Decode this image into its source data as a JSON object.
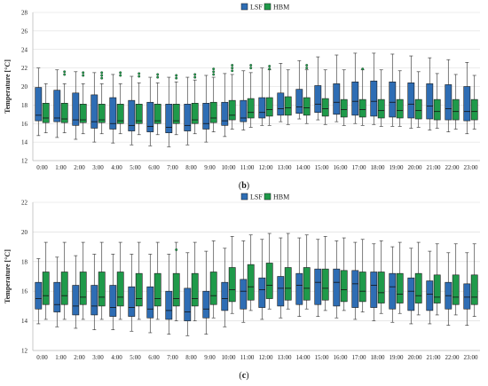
{
  "chart_data": [
    {
      "type": "boxplot",
      "panel": "b",
      "caption_open": "(",
      "caption_letter": "b",
      "caption_close": ")",
      "ylabel": "Temperature [°C]",
      "ylim": [
        12,
        28
      ],
      "yticks": [
        12,
        14,
        16,
        18,
        20,
        22,
        24,
        26,
        28
      ],
      "grid": true,
      "legend_position": "top-right",
      "categories": [
        "0:00",
        "1:00",
        "2:00",
        "3:00",
        "4:00",
        "5:00",
        "6:00",
        "7:00",
        "8:00",
        "9:00",
        "10:00",
        "11:00",
        "12:00",
        "13:00",
        "14:00",
        "15:00",
        "16:00",
        "17:00",
        "18:00",
        "19:00",
        "20:00",
        "21:00",
        "22:00",
        "23:00"
      ],
      "series": [
        {
          "name": "LSF",
          "color": "#2e6db4",
          "boxes": [
            [
              14.7,
              16.3,
              16.9,
              19.9,
              22.0
            ],
            [
              14.5,
              16.2,
              16.6,
              19.6,
              21.8
            ],
            [
              14.3,
              15.8,
              16.4,
              19.3,
              21.6
            ],
            [
              14.0,
              15.5,
              16.2,
              19.1,
              21.5
            ],
            [
              13.9,
              15.4,
              16.0,
              18.8,
              21.3
            ],
            [
              13.7,
              15.2,
              15.8,
              18.5,
              21.1
            ],
            [
              13.6,
              15.1,
              15.7,
              18.3,
              21.0
            ],
            [
              13.5,
              15.0,
              15.6,
              18.1,
              21.0
            ],
            [
              13.7,
              15.2,
              15.8,
              18.1,
              21.0
            ],
            [
              14.0,
              15.4,
              16.0,
              18.2,
              21.2
            ],
            [
              14.6,
              15.8,
              16.3,
              18.3,
              21.4
            ],
            [
              15.3,
              16.2,
              16.6,
              18.5,
              21.7
            ],
            [
              15.8,
              16.6,
              17.2,
              18.8,
              22.0
            ],
            [
              16.2,
              16.9,
              17.6,
              19.3,
              22.5
            ],
            [
              16.5,
              17.1,
              17.8,
              19.7,
              22.8
            ],
            [
              16.4,
              17.2,
              18.1,
              20.1,
              23.2
            ],
            [
              16.2,
              17.0,
              18.3,
              20.3,
              23.4
            ],
            [
              16.0,
              16.9,
              18.4,
              20.5,
              23.6
            ],
            [
              15.9,
              16.8,
              18.4,
              20.6,
              23.6
            ],
            [
              15.7,
              16.7,
              18.3,
              20.5,
              23.5
            ],
            [
              15.5,
              16.6,
              18.1,
              20.4,
              23.3
            ],
            [
              15.3,
              16.5,
              17.9,
              20.3,
              23.1
            ],
            [
              15.1,
              16.4,
              17.6,
              20.2,
              22.9
            ],
            [
              14.9,
              16.3,
              17.3,
              20.0,
              22.6
            ]
          ]
        },
        {
          "name": "HBM",
          "color": "#1f9a4a",
          "boxes": [
            [
              15.0,
              16.1,
              16.6,
              18.2,
              20.3
            ],
            [
              15.0,
              16.1,
              16.5,
              18.2,
              20.3
            ],
            [
              14.9,
              16.1,
              16.4,
              18.1,
              20.3
            ],
            [
              14.9,
              16.1,
              16.4,
              18.1,
              20.3
            ],
            [
              14.9,
              16.0,
              16.3,
              18.1,
              20.3
            ],
            [
              14.8,
              16.0,
              16.3,
              18.1,
              20.4
            ],
            [
              14.8,
              16.0,
              16.3,
              18.1,
              20.4
            ],
            [
              14.8,
              16.0,
              16.3,
              18.1,
              20.5
            ],
            [
              14.9,
              16.0,
              16.4,
              18.2,
              20.7
            ],
            [
              15.1,
              16.1,
              16.6,
              18.3,
              21.0
            ],
            [
              15.4,
              16.4,
              16.9,
              18.5,
              21.3
            ],
            [
              15.6,
              16.6,
              17.2,
              18.7,
              21.5
            ],
            [
              15.8,
              16.8,
              17.5,
              18.8,
              21.8
            ],
            [
              15.9,
              16.9,
              17.7,
              18.9,
              21.8
            ],
            [
              16.0,
              16.9,
              17.7,
              18.8,
              21.8
            ],
            [
              15.9,
              16.8,
              17.6,
              18.7,
              21.8
            ],
            [
              15.8,
              16.7,
              17.5,
              18.6,
              21.8
            ],
            [
              15.8,
              16.7,
              17.5,
              18.6,
              21.8
            ],
            [
              15.7,
              16.6,
              17.4,
              18.6,
              21.8
            ],
            [
              15.7,
              16.6,
              17.4,
              18.6,
              21.7
            ],
            [
              15.6,
              16.5,
              17.4,
              18.6,
              21.6
            ],
            [
              15.5,
              16.4,
              17.3,
              18.6,
              21.4
            ],
            [
              15.4,
              16.4,
              17.3,
              18.6,
              21.3
            ],
            [
              15.4,
              16.4,
              17.3,
              18.6,
              21.2
            ]
          ],
          "outliers": [
            [],
            [
              21.6,
              21.3
            ],
            [
              21.5,
              21.2
            ],
            [
              21.5,
              21.2,
              20.9
            ],
            [
              21.5,
              21.2
            ],
            [
              21.4,
              21.1
            ],
            [
              21.3,
              21.0
            ],
            [
              21.2,
              20.9
            ],
            [
              21.3,
              21.0
            ],
            [
              21.9,
              21.6,
              21.3
            ],
            [
              22.3,
              22.0,
              21.7
            ],
            [
              22.3,
              22.0
            ],
            [
              22.2,
              21.9
            ],
            [],
            [
              22.3,
              22.0
            ],
            [],
            [],
            [
              21.9
            ],
            [],
            [],
            [],
            [],
            [],
            []
          ]
        }
      ]
    },
    {
      "type": "boxplot",
      "panel": "c",
      "caption_open": "(",
      "caption_letter": "c",
      "caption_close": ")",
      "ylabel": "Temperature [°C]",
      "ylim": [
        12,
        22
      ],
      "yticks": [
        12,
        14,
        16,
        18,
        20,
        22
      ],
      "grid": true,
      "legend_position": "top-right",
      "categories": [
        "0:00",
        "1:00",
        "2:00",
        "3:00",
        "4:00",
        "5:00",
        "6:00",
        "7:00",
        "8:00",
        "9:00",
        "10:00",
        "11:00",
        "12:00",
        "13:00",
        "14:00",
        "15:00",
        "16:00",
        "17:00",
        "18:00",
        "19:00",
        "20:00",
        "21:00",
        "22:00",
        "23:00"
      ],
      "series": [
        {
          "name": "LSF",
          "color": "#2e6db4",
          "boxes": [
            [
              13.8,
              14.8,
              15.5,
              16.6,
              18.2
            ],
            [
              13.6,
              14.6,
              15.1,
              16.6,
              18.3
            ],
            [
              13.5,
              14.4,
              15.0,
              16.4,
              18.4
            ],
            [
              13.4,
              14.4,
              15.0,
              16.4,
              18.5
            ],
            [
              13.4,
              14.3,
              14.9,
              16.4,
              18.5
            ],
            [
              13.3,
              14.3,
              14.9,
              16.3,
              18.5
            ],
            [
              13.2,
              14.2,
              14.8,
              16.3,
              18.5
            ],
            [
              13.1,
              14.1,
              14.7,
              16.0,
              18.5
            ],
            [
              13.0,
              14.0,
              14.6,
              16.2,
              18.6
            ],
            [
              13.1,
              14.2,
              14.8,
              16.0,
              18.7
            ],
            [
              13.6,
              14.7,
              15.5,
              16.6,
              18.9
            ],
            [
              13.9,
              14.8,
              16.0,
              16.8,
              19.4
            ],
            [
              14.1,
              14.9,
              16.1,
              16.9,
              19.5
            ],
            [
              14.2,
              15.0,
              16.2,
              17.0,
              19.6
            ],
            [
              14.3,
              15.1,
              16.4,
              17.2,
              19.6
            ],
            [
              14.3,
              15.1,
              16.6,
              17.5,
              19.5
            ],
            [
              14.2,
              15.0,
              16.6,
              17.5,
              19.4
            ],
            [
              14.1,
              14.9,
              16.5,
              17.4,
              19.3
            ],
            [
              14.0,
              14.9,
              16.4,
              17.3,
              19.2
            ],
            [
              13.9,
              14.8,
              16.3,
              17.2,
              19.0
            ],
            [
              13.8,
              14.7,
              16.0,
              16.9,
              18.9
            ],
            [
              13.8,
              14.7,
              15.8,
              16.7,
              18.7
            ],
            [
              13.7,
              14.8,
              15.7,
              16.6,
              18.6
            ],
            [
              13.7,
              14.8,
              15.6,
              16.5,
              18.6
            ]
          ]
        },
        {
          "name": "HBM",
          "color": "#1f9a4a",
          "boxes": [
            [
              14.1,
              15.1,
              15.7,
              17.3,
              19.3
            ],
            [
              14.1,
              15.1,
              15.7,
              17.3,
              19.3
            ],
            [
              14.1,
              15.1,
              15.6,
              17.3,
              19.3
            ],
            [
              14.1,
              15.0,
              15.6,
              17.3,
              19.3
            ],
            [
              14.1,
              15.0,
              15.6,
              17.3,
              19.3
            ],
            [
              14.1,
              15.0,
              15.5,
              17.2,
              19.3
            ],
            [
              14.1,
              15.0,
              15.5,
              17.2,
              19.3
            ],
            [
              14.0,
              15.0,
              15.5,
              17.2,
              19.3
            ],
            [
              14.0,
              15.0,
              15.5,
              17.2,
              19.3
            ],
            [
              14.2,
              15.1,
              15.7,
              17.3,
              19.4
            ],
            [
              14.5,
              15.3,
              16.1,
              17.6,
              19.7
            ],
            [
              14.7,
              15.4,
              16.3,
              17.8,
              19.8
            ],
            [
              14.8,
              15.5,
              16.4,
              17.9,
              19.9
            ],
            [
              14.8,
              15.4,
              16.2,
              17.6,
              19.9
            ],
            [
              14.8,
              15.4,
              16.2,
              17.6,
              19.8
            ],
            [
              14.7,
              15.4,
              16.2,
              17.5,
              19.7
            ],
            [
              14.7,
              15.3,
              16.1,
              17.4,
              19.6
            ],
            [
              14.6,
              15.3,
              16.0,
              17.3,
              19.5
            ],
            [
              14.5,
              15.2,
              15.9,
              17.3,
              19.4
            ],
            [
              14.5,
              15.2,
              15.8,
              17.2,
              19.3
            ],
            [
              14.4,
              15.2,
              15.7,
              17.2,
              19.3
            ],
            [
              14.4,
              15.2,
              15.6,
              17.1,
              19.2
            ],
            [
              14.4,
              15.1,
              15.6,
              17.1,
              19.2
            ],
            [
              14.3,
              15.1,
              15.6,
              17.1,
              19.2
            ]
          ],
          "outliers": [
            [],
            [],
            [],
            [],
            [],
            [],
            [],
            [
              18.8
            ],
            [],
            [],
            [],
            [],
            [],
            [],
            [],
            [],
            [],
            [],
            [],
            [],
            [],
            [],
            [],
            []
          ]
        }
      ]
    }
  ]
}
